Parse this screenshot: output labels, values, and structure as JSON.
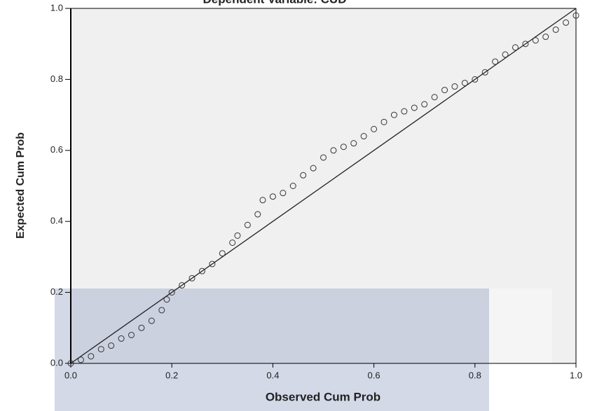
{
  "chart_data": {
    "type": "scatter",
    "title": "Dependent Variable: CUD",
    "x_label": "Observed Cum Prob",
    "y_label": "Expected Cum Prob",
    "x": [
      0,
      0.02,
      0.04,
      0.06,
      0.08,
      0.1,
      0.12,
      0.14,
      0.16,
      0.18,
      0.19,
      0.2,
      0.22,
      0.24,
      0.26,
      0.28,
      0.3,
      0.32,
      0.33,
      0.35,
      0.37,
      0.38,
      0.4,
      0.42,
      0.44,
      0.46,
      0.48,
      0.5,
      0.52,
      0.54,
      0.56,
      0.58,
      0.6,
      0.62,
      0.64,
      0.66,
      0.68,
      0.7,
      0.72,
      0.74,
      0.76,
      0.78,
      0.8,
      0.82,
      0.84,
      0.86,
      0.88,
      0.9,
      0.92,
      0.94,
      0.96,
      0.98,
      1.0
    ],
    "values": [
      0,
      0.01,
      0.02,
      0.04,
      0.05,
      0.07,
      0.08,
      0.1,
      0.12,
      0.15,
      0.18,
      0.2,
      0.22,
      0.24,
      0.26,
      0.28,
      0.31,
      0.34,
      0.36,
      0.39,
      0.42,
      0.46,
      0.47,
      0.48,
      0.5,
      0.53,
      0.55,
      0.58,
      0.6,
      0.61,
      0.62,
      0.64,
      0.66,
      0.68,
      0.7,
      0.71,
      0.72,
      0.73,
      0.75,
      0.77,
      0.78,
      0.79,
      0.8,
      0.82,
      0.85,
      0.87,
      0.89,
      0.9,
      0.91,
      0.92,
      0.94,
      0.96,
      0.98
    ],
    "color": "#333333",
    "xlim": [
      0,
      1
    ],
    "ylim": [
      0,
      1
    ],
    "xticks": [
      {
        "value": 0,
        "label": "0.0"
      },
      0.2,
      0.4,
      0.6,
      0.8,
      {
        "value": 1,
        "label": "1.0"
      }
    ],
    "yticks": [
      {
        "value": 0,
        "label": "0.0"
      },
      0.2,
      0.4,
      0.6,
      0.8,
      {
        "value": 1,
        "label": "1.0"
      }
    ],
    "reference_line": true
  }
}
